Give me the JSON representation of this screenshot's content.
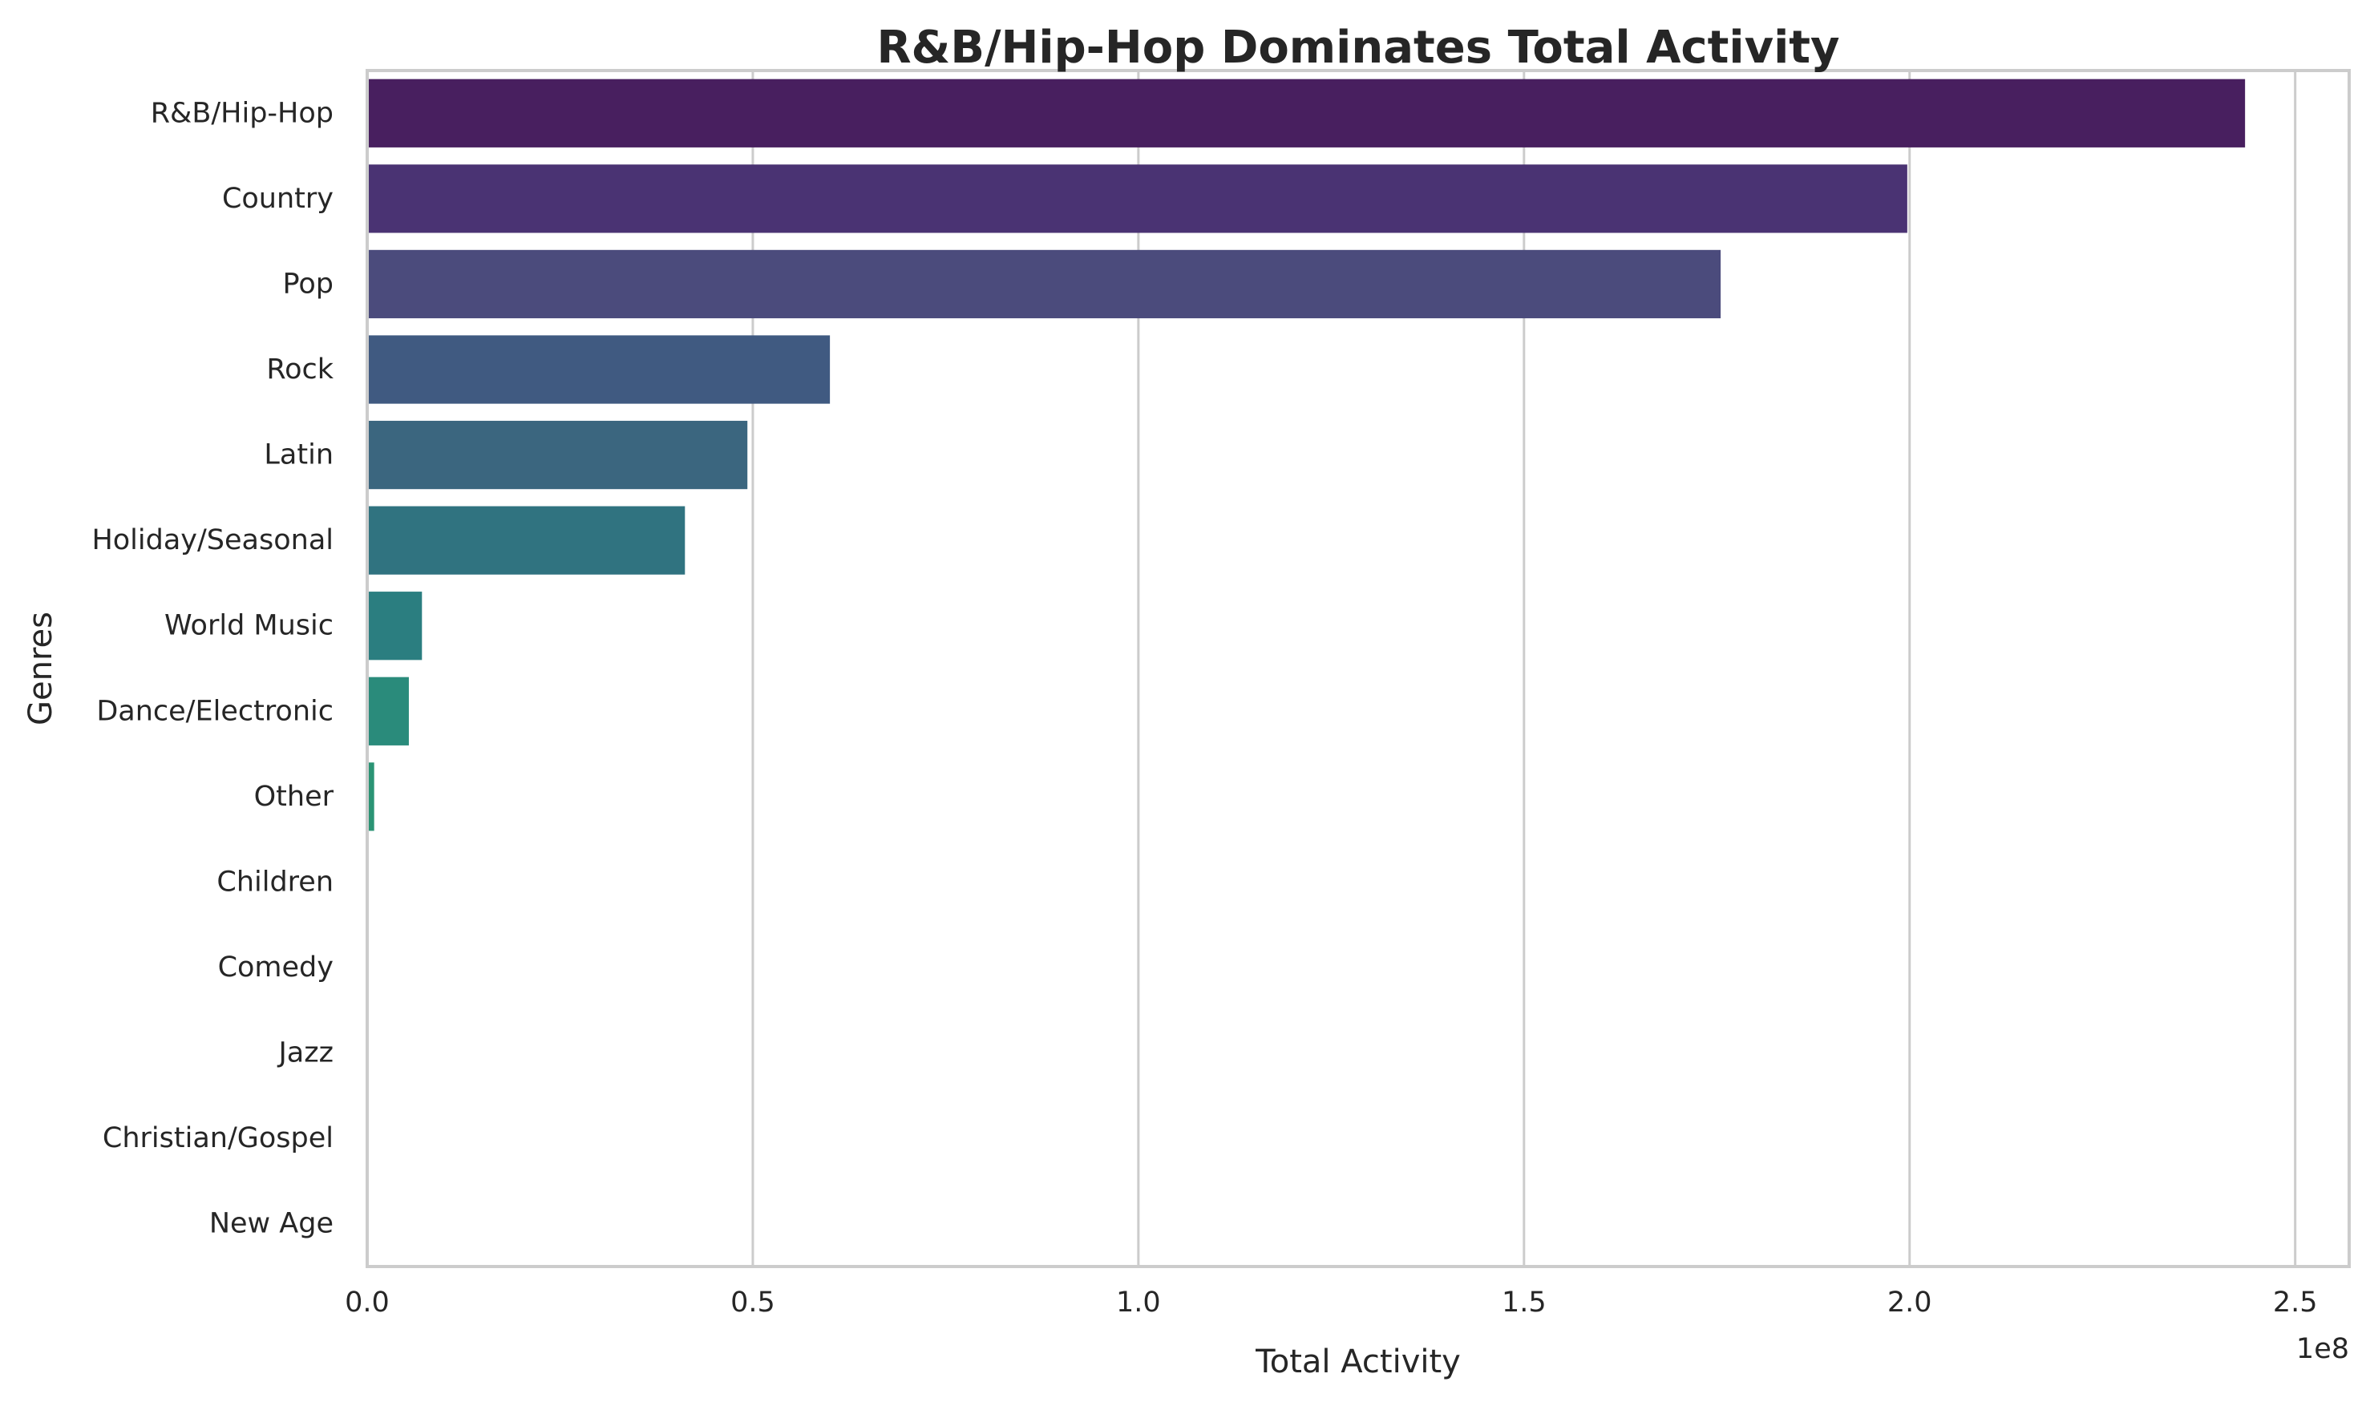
{
  "chart_data": {
    "type": "bar",
    "orientation": "horizontal",
    "title": "R&B/Hip-Hop Dominates Total Activity",
    "xlabel": "Total Activity",
    "ylabel": "Genres",
    "x_scale_label": "1e8",
    "xlim": [
      0,
      2.57
    ],
    "x_ticks": [
      {
        "value": 0.0,
        "label": "0.0"
      },
      {
        "value": 0.5,
        "label": "0.5"
      },
      {
        "value": 1.0,
        "label": "1.0"
      },
      {
        "value": 1.5,
        "label": "1.5"
      },
      {
        "value": 2.0,
        "label": "2.0"
      },
      {
        "value": 2.5,
        "label": "2.5"
      }
    ],
    "grid": true,
    "categories": [
      "R&B/Hip-Hop",
      "Country",
      "Pop",
      "Rock",
      "Latin",
      "Holiday/Seasonal",
      "World Music",
      "Dance/Electronic",
      "Other",
      "Children",
      "Comedy",
      "Jazz",
      "Christian/Gospel",
      "New Age"
    ],
    "values": [
      2.435,
      1.997,
      1.755,
      0.6,
      0.493,
      0.412,
      0.071,
      0.054,
      0.009,
      0.0,
      0.0,
      0.0,
      0.0,
      0.0
    ],
    "colors": [
      "#481f5f",
      "#4a3373",
      "#4b4b7c",
      "#405a81",
      "#3b667f",
      "#307380",
      "#2b7e80",
      "#2a8b7b",
      "#2b9474",
      "#33a06e",
      "#3da968",
      "#4bb462",
      "#5dbd5c",
      "#72c655"
    ]
  }
}
